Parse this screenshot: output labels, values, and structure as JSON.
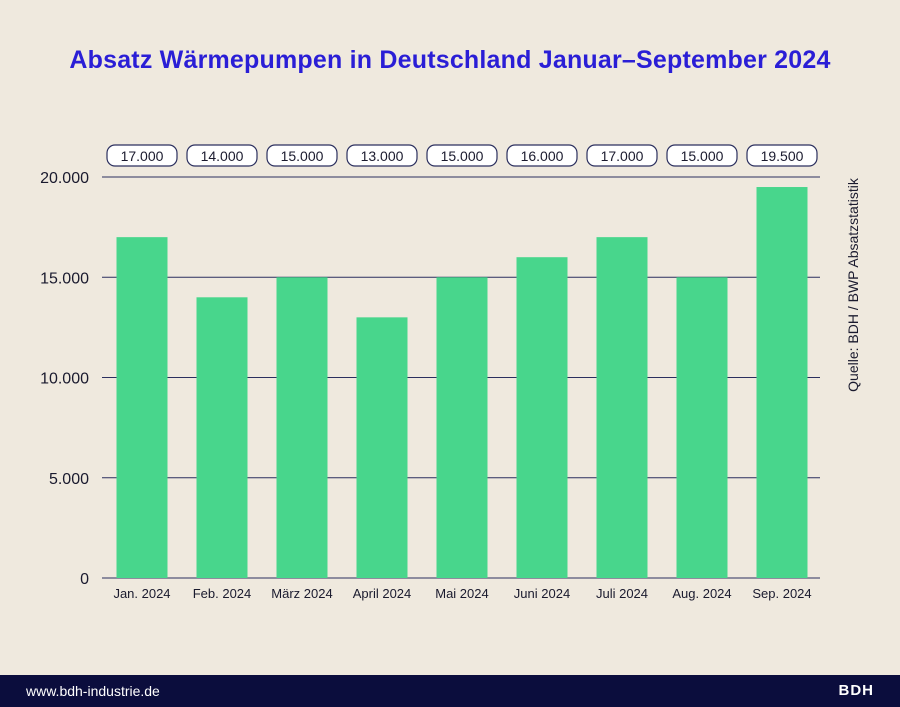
{
  "chart_data": {
    "type": "bar",
    "title": "Absatz Wärmepumpen in Deutschland Januar–September 2024",
    "categories": [
      "Jan. 2024",
      "Feb. 2024",
      "März 2024",
      "April 2024",
      "Mai 2024",
      "Juni 2024",
      "Juli 2024",
      "Aug. 2024",
      "Sep. 2024"
    ],
    "values": [
      17000,
      14000,
      15000,
      13000,
      15000,
      16000,
      17000,
      15000,
      19500
    ],
    "value_labels": [
      "17.000",
      "14.000",
      "15.000",
      "13.000",
      "15.000",
      "16.000",
      "17.000",
      "15.000",
      "19.500"
    ],
    "yticks": [
      0,
      5000,
      10000,
      15000,
      20000
    ],
    "ytick_labels": [
      "0",
      "5.000",
      "10.000",
      "15.000",
      "20.000"
    ],
    "ylim": [
      0,
      20000
    ],
    "xlabel": "",
    "ylabel": "",
    "grid": true,
    "legend": "none",
    "bar_color": "#48d68c",
    "source": "Quelle: BDH / BWP Absatzstatistik"
  },
  "colors": {
    "background": "#efe9de",
    "title": "#2a1ed6",
    "bar": "#48d68c",
    "gridline": "#2b2f5e",
    "footer": "#0b0d3d"
  },
  "footer": {
    "url": "www.bdh-industrie.de",
    "logo": "BDH"
  }
}
